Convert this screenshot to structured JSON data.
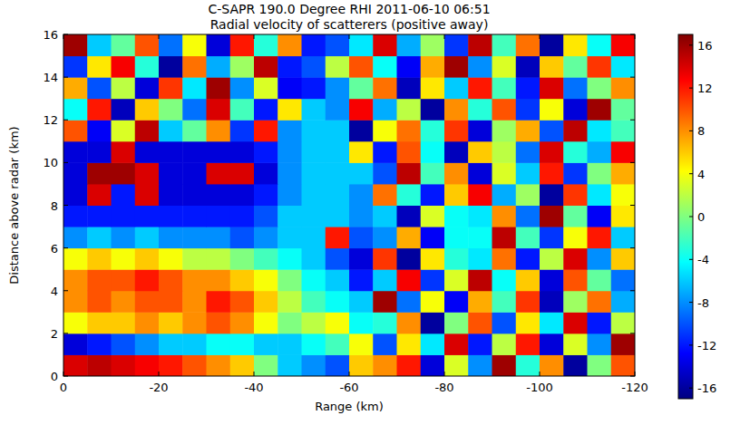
{
  "chart_data": {
    "type": "heatmap",
    "title": "C-SAPR 190.0 Degree RHI 2011-06-10 06:51",
    "subtitle": "Radial velocity of scatterers (positive away)",
    "x_label": "Range (km)",
    "y_label": "Distance above radar (km)",
    "xlim": [
      0,
      -120
    ],
    "xticks": [
      0,
      -20,
      -40,
      -60,
      -80,
      -100,
      -120
    ],
    "ylim": [
      0,
      16
    ],
    "yticks": [
      0,
      2,
      4,
      6,
      8,
      10,
      12,
      14,
      16
    ],
    "x": [
      -2.5,
      -7.5,
      -12.5,
      -17.5,
      -22.5,
      -27.5,
      -32.5,
      -37.5,
      -42.5,
      -47.5,
      -52.5,
      -57.5,
      -62.5,
      -67.5,
      -72.5,
      -77.5,
      -82.5,
      -87.5,
      -92.5,
      -97.5,
      -102.5,
      -107.5,
      -112.5,
      -117.5
    ],
    "y": [
      0.5,
      1.5,
      2.5,
      3.5,
      4.5,
      5.5,
      6.5,
      7.5,
      8.5,
      9.5,
      10.5,
      11.5,
      12.5,
      13.5,
      14.5,
      15.5
    ],
    "values": [
      [
        14,
        15,
        14,
        13,
        12,
        10,
        8,
        6,
        0,
        -6,
        -8,
        -10,
        6,
        8,
        12,
        -14,
        3,
        -8,
        16,
        -3,
        8,
        -16,
        0,
        10
      ],
      [
        -14,
        -12,
        -10,
        -8,
        -6,
        -6,
        -4,
        -4,
        -6,
        -6,
        -4,
        -2,
        4,
        -10,
        5,
        -5,
        14,
        -12,
        2,
        12,
        -14,
        3,
        -8,
        16
      ],
      [
        4,
        6,
        6,
        8,
        6,
        8,
        10,
        8,
        4,
        0,
        2,
        4,
        -4,
        -3,
        8,
        -16,
        0,
        10,
        -10,
        5,
        -5,
        14,
        -12,
        2
      ],
      [
        8,
        10,
        8,
        10,
        10,
        8,
        12,
        10,
        6,
        2,
        -2,
        -4,
        -6,
        16,
        -9,
        4,
        -13,
        7,
        -2,
        11,
        -15,
        1,
        9,
        -7
      ],
      [
        8,
        10,
        10,
        12,
        10,
        8,
        8,
        6,
        4,
        0,
        -4,
        -6,
        -12,
        -6,
        13,
        -11,
        3,
        15,
        -4,
        6,
        -14,
        10,
        -1,
        -9
      ],
      [
        4,
        6,
        4,
        6,
        4,
        2,
        2,
        0,
        -2,
        -4,
        -6,
        -10,
        -14,
        11,
        -16,
        5,
        -3,
        -5,
        9,
        -12,
        2,
        14,
        -8,
        6
      ],
      [
        -8,
        -6,
        -8,
        -6,
        -8,
        -8,
        -8,
        -10,
        -8,
        -6,
        -6,
        12,
        -10,
        -8,
        7,
        -13,
        -4,
        -4,
        15,
        -2,
        -11,
        4,
        12,
        -6
      ],
      [
        -12,
        -12,
        -12,
        -12,
        -12,
        -12,
        -12,
        -12,
        -10,
        -6,
        -6,
        -6,
        -8,
        -6,
        -15,
        3,
        -4,
        -5,
        8,
        -9,
        16,
        -1,
        -13,
        5
      ],
      [
        -14,
        14,
        -12,
        14,
        -14,
        -14,
        -14,
        -14,
        -12,
        -8,
        -6,
        -6,
        -8,
        9,
        -3,
        -12,
        6,
        13,
        -7,
        1,
        -16,
        11,
        -5,
        4
      ],
      [
        -14,
        16,
        16,
        14,
        -14,
        -14,
        14,
        14,
        -14,
        -8,
        -6,
        -6,
        -6,
        -10,
        15,
        -2,
        8,
        -14,
        3,
        -6,
        12,
        -11,
        0,
        7
      ],
      [
        -14,
        -14,
        14,
        -14,
        -14,
        -14,
        -14,
        -14,
        -12,
        -8,
        -6,
        -6,
        5,
        -12,
        10,
        -4,
        -15,
        6,
        2,
        -9,
        14,
        -3,
        -7,
        13
      ],
      [
        10,
        -13,
        3,
        15,
        -6,
        -1,
        8,
        -11,
        12,
        -8,
        -6,
        -6,
        -16,
        4,
        9,
        -3,
        11,
        -14,
        1,
        7,
        -10,
        15,
        -5,
        -2
      ],
      [
        -4,
        12,
        -15,
        6,
        0,
        -9,
        14,
        -2,
        -12,
        5,
        -6,
        -8,
        13,
        -7,
        2,
        -16,
        8,
        -3,
        10,
        -11,
        4,
        -14,
        16,
        -1
      ],
      [
        7,
        -10,
        2,
        -14,
        11,
        -5,
        16,
        -8,
        3,
        -13,
        -12,
        -8,
        -1,
        9,
        -15,
        5,
        -6,
        12,
        -2,
        -12,
        14,
        -9,
        0,
        8
      ],
      [
        -11,
        5,
        13,
        -3,
        -16,
        9,
        -7,
        1,
        15,
        -12,
        -10,
        2,
        10,
        -4,
        -13,
        7,
        16,
        -8,
        3,
        -15,
        6,
        -1,
        11,
        -5
      ],
      [
        16,
        -6,
        -1,
        10,
        -9,
        4,
        -14,
        12,
        -3,
        8,
        -12,
        -10,
        -5,
        14,
        -7,
        1,
        -11,
        15,
        -2,
        9,
        -16,
        5,
        -4,
        13
      ]
    ],
    "colorbar_lim": [
      -17,
      17
    ],
    "colorbar_ticks": [
      -16,
      -12,
      -8,
      -4,
      0,
      4,
      8,
      12,
      16
    ]
  }
}
